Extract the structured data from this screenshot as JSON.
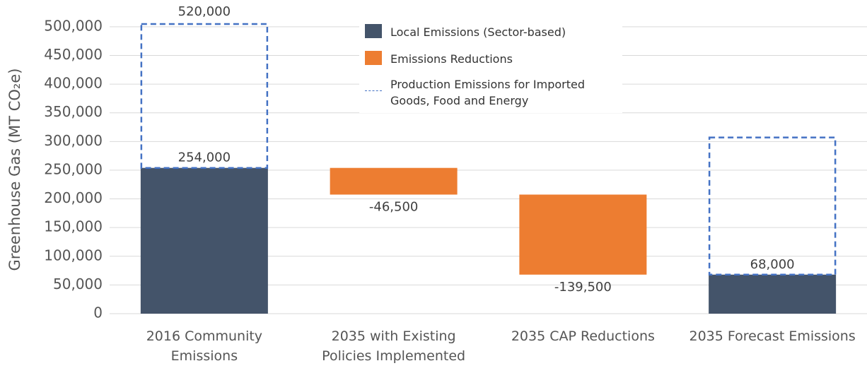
{
  "chart_data": {
    "type": "waterfall",
    "y_label": "Greenhouse Gas (MT CO₂e)",
    "categories": [
      "2016 Community Emissions",
      "2035 with Existing Policies Implemented",
      "2035 CAP Reductions",
      "2035 Forecast Emissions"
    ],
    "series": [
      {
        "name": "Local Emissions (Sector-based)",
        "color": "#44546a",
        "values": [
          254000,
          null,
          null,
          68000
        ],
        "value_labels": [
          "254,000",
          null,
          null,
          "68,000"
        ]
      },
      {
        "name": "Emissions Reductions",
        "color": "#ed7d31",
        "values": [
          null,
          -46500,
          -139500,
          null
        ],
        "value_labels": [
          null,
          "-46,500",
          "-139,500",
          null
        ]
      },
      {
        "name": "Production Emissions for Imported Goods, Food and Energy",
        "color": "#4472c4",
        "dashed": true,
        "values": [
          266000,
          null,
          null,
          239000
        ]
      }
    ],
    "annotations": [
      {
        "text": "520,000",
        "category": 0
      }
    ],
    "ylim": [
      0,
      506000
    ],
    "yticks": [
      0,
      {
        "value": 50000,
        "label": "50,000"
      },
      {
        "value": 100000,
        "label": "100,000"
      },
      {
        "value": 150000,
        "label": "150,000"
      },
      {
        "value": 200000,
        "label": "200,000"
      },
      {
        "value": 250000,
        "label": "250,000"
      },
      {
        "value": 300000,
        "label": "300,000"
      },
      {
        "value": 350000,
        "label": "350,000"
      },
      {
        "value": 400000,
        "label": "400,000"
      },
      {
        "value": 450000,
        "label": "450,000"
      },
      {
        "value": 500000,
        "label": "500,000"
      }
    ],
    "grid": true
  }
}
